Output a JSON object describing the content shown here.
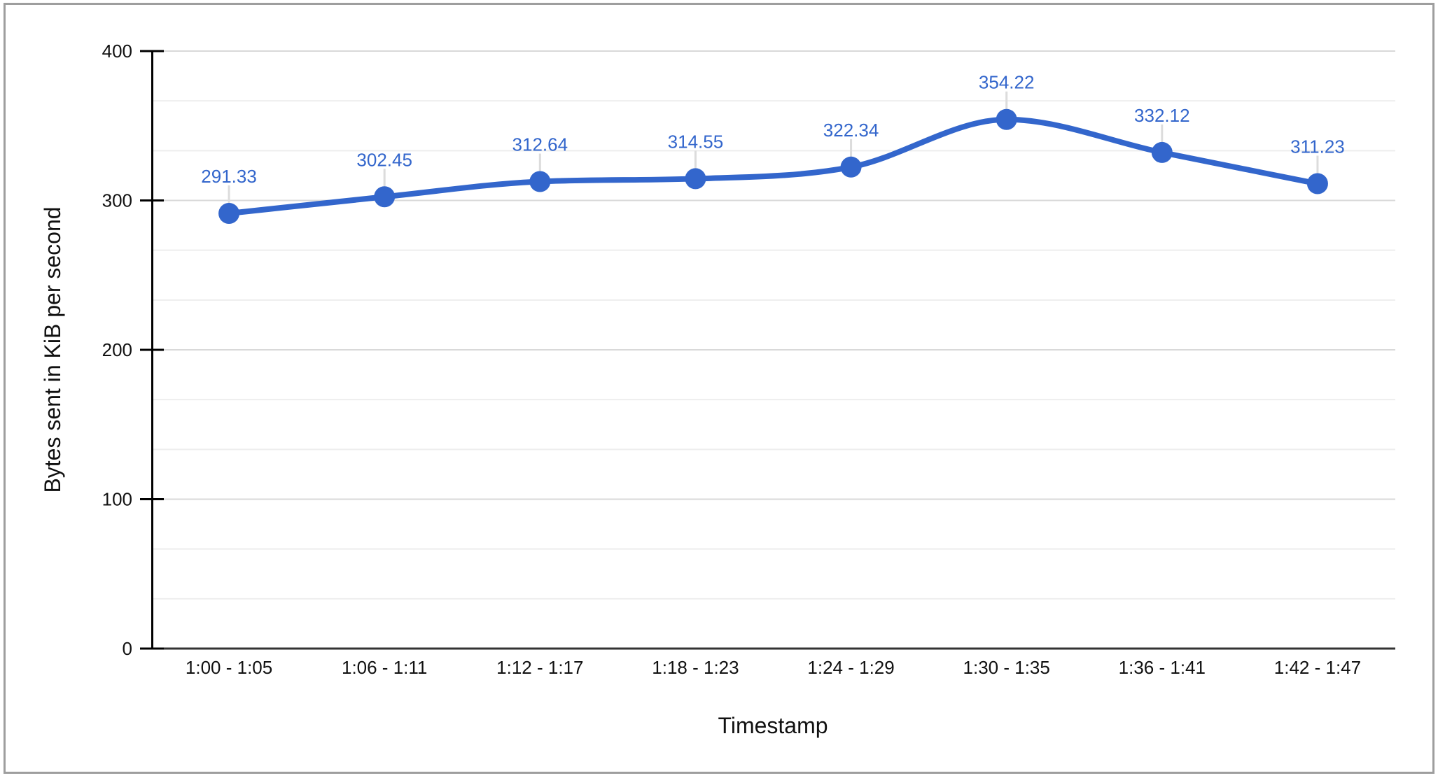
{
  "chart_data": {
    "type": "line",
    "title": "",
    "xlabel": "Timestamp",
    "ylabel": "Bytes sent in KiB per second",
    "categories": [
      "1:00 - 1:05",
      "1:06 - 1:11",
      "1:12 - 1:17",
      "1:18 - 1:23",
      "1:24 - 1:29",
      "1:30 - 1:35",
      "1:36 - 1:41",
      "1:42 - 1:47"
    ],
    "values": [
      291.33,
      302.45,
      312.64,
      314.55,
      322.34,
      354.22,
      332.12,
      311.23
    ],
    "point_labels": [
      "291.33",
      "302.45",
      "312.64",
      "314.55",
      "322.34",
      "354.22",
      "332.12",
      "311.23"
    ],
    "ylim": [
      0,
      400
    ],
    "y_ticks": [
      0,
      100,
      200,
      300,
      400
    ],
    "minor_gridlines_per_major": 2,
    "grid": true,
    "legend_position": "none",
    "curve": "smooth",
    "point_labels_visible": true
  },
  "colors": {
    "series_line": "#3366cc",
    "marker_fill": "#3366cc",
    "annotation_text": "#3366cc",
    "annotation_stem": "#dcdcdc",
    "major_gridline": "#d9d9d9",
    "minor_gridline": "#eeeeee",
    "baseline": "#333333",
    "axis_line": "#000000",
    "tick_mark": "#000000",
    "tick_label": "#111111",
    "chart_border": "#9e9e9e",
    "background": "#ffffff"
  }
}
